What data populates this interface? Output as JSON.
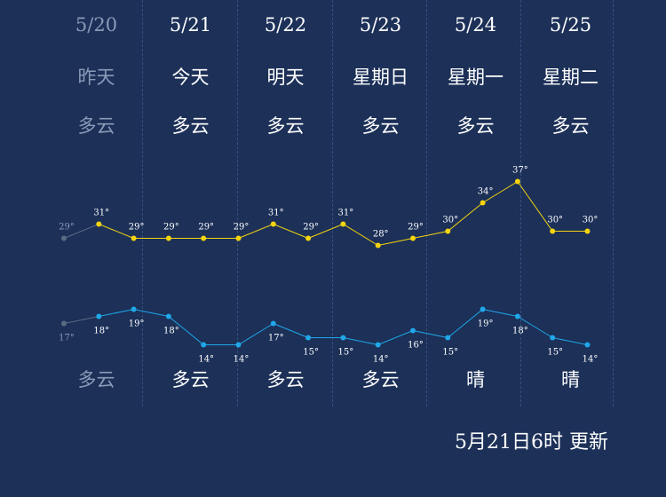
{
  "days": [
    {
      "date": "5/20",
      "label": "昨天",
      "day_weather": "多云",
      "night_weather": "多云",
      "past": true
    },
    {
      "date": "5/21",
      "label": "今天",
      "day_weather": "多云",
      "night_weather": "多云",
      "past": false
    },
    {
      "date": "5/22",
      "label": "明天",
      "day_weather": "多云",
      "night_weather": "多云",
      "past": false
    },
    {
      "date": "5/23",
      "label": "星期日",
      "day_weather": "多云",
      "night_weather": "多云",
      "past": false
    },
    {
      "date": "5/24",
      "label": "星期一",
      "day_weather": "多云",
      "night_weather": "晴",
      "past": false
    },
    {
      "date": "5/25",
      "label": "星期二",
      "day_weather": "多云",
      "night_weather": "晴",
      "past": false
    }
  ],
  "update_text": "5月21日6时 更新",
  "chart_data": {
    "type": "line",
    "unit": "°",
    "series": [
      {
        "values": [
          29,
          31,
          29,
          29,
          29,
          29,
          31,
          29,
          31,
          28,
          29,
          30,
          34,
          37,
          30,
          30
        ],
        "color": "#f5d40f"
      },
      {
        "values": [
          17,
          18,
          19,
          18,
          14,
          14,
          17,
          15,
          15,
          14,
          16,
          15,
          19,
          18,
          15,
          14
        ],
        "color": "#1fa7e8"
      }
    ],
    "past_points": 1,
    "past_color": "#5a6b82"
  }
}
